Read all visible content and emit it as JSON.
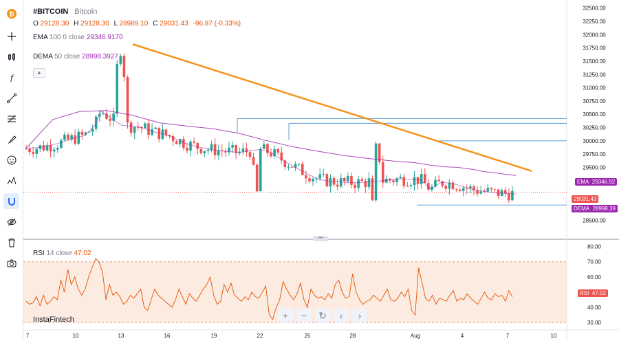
{
  "header": {
    "symbol": "#BITCOIN",
    "name": "Bitcoin",
    "ohlc": {
      "o_label": "O",
      "o": "29128.30",
      "h_label": "H",
      "h": "29128.30",
      "l_label": "L",
      "l": "28989.10",
      "c_label": "C",
      "c": "29031.43",
      "change": "-96.87 (-0.33%)"
    }
  },
  "indicators": {
    "ema": {
      "name": "EMA",
      "params": "100 0 close",
      "value": "29346.9170",
      "tag_name": "EMA",
      "tag_value": "29346.92"
    },
    "dema": {
      "name": "DEMA",
      "params": "50 close",
      "value": "28998.3927",
      "tag_name": "DEMA",
      "tag_value": "28998.39"
    },
    "rsi": {
      "name": "RSI",
      "params": "14 close",
      "value": "47.02",
      "tag_name": "RSI",
      "tag_value": "47.02"
    }
  },
  "price_tag": "29031.43",
  "watermark": "InstaFintech",
  "toolbar_icons": [
    "bitcoin-logo-icon",
    "crosshair-icon",
    "candles-icon",
    "fx-icon",
    "trend-line-icon",
    "fib-icon",
    "brush-icon",
    "emoji-icon",
    "pattern-icon",
    "magnet-icon",
    "eye-off-icon",
    "trash-icon",
    "camera-icon"
  ],
  "colors": {
    "up": "#26a69a",
    "down": "#ef5350",
    "trend": "#f7931a",
    "ema": "#9c27b0",
    "levels": "#5b9bd5",
    "rsi": "#e65100"
  },
  "chart_data": [
    {
      "type": "candlestick",
      "ylim": [
        28250,
        32600
      ],
      "price_ticks": [
        "32500.00",
        "32250.00",
        "32000.00",
        "31750.00",
        "31500.00",
        "31250.00",
        "31000.00",
        "30750.00",
        "30500.00",
        "30250.00",
        "30000.00",
        "29750.00",
        "29500.00",
        "29250.00",
        "28750.00",
        "28500.00"
      ],
      "x_ticks": [
        "7",
        "10",
        "13",
        "16",
        "19",
        "22",
        "25",
        "28",
        "Aug",
        "4",
        "7",
        "10"
      ],
      "series": [
        {
          "name": "EMA",
          "points": [
            [
              0,
              29860
            ],
            [
              5,
              30400
            ],
            [
              10,
              30550
            ],
            [
              15,
              30570
            ],
            [
              20,
              30480
            ],
            [
              25,
              30340
            ],
            [
              30,
              30280
            ],
            [
              35,
              30230
            ],
            [
              40,
              30140
            ],
            [
              45,
              30010
            ],
            [
              50,
              29890
            ],
            [
              55,
              29800
            ],
            [
              60,
              29720
            ],
            [
              65,
              29660
            ],
            [
              70,
              29610
            ],
            [
              73,
              29590
            ],
            [
              76,
              29540
            ],
            [
              79,
              29510
            ],
            [
              81,
              29500
            ],
            [
              84,
              29460
            ],
            [
              86,
              29420
            ],
            [
              88,
              29400
            ],
            [
              90,
              29370
            ],
            [
              92,
              29347
            ]
          ]
        },
        {
          "name": "DEMA",
          "points": [
            [
              0,
              29850
            ],
            [
              3,
              29880
            ],
            [
              6,
              29950
            ],
            [
              9,
              30050
            ],
            [
              11,
              30100
            ],
            [
              13,
              30300
            ],
            [
              14,
              30560
            ],
            [
              16,
              30420
            ],
            [
              18,
              30290
            ],
            [
              21,
              30270
            ],
            [
              24,
              30170
            ],
            [
              27,
              30090
            ],
            [
              30,
              29950
            ],
            [
              32,
              29890
            ],
            [
              35,
              29830
            ],
            [
              40,
              29780
            ],
            [
              44,
              29840
            ],
            [
              46,
              29780
            ],
            [
              48,
              29650
            ],
            [
              52,
              29420
            ],
            [
              55,
              29270
            ],
            [
              58,
              29230
            ],
            [
              62,
              29210
            ],
            [
              66,
              29240
            ],
            [
              70,
              29280
            ],
            [
              74,
              29270
            ],
            [
              76,
              29090
            ],
            [
              78,
              29220
            ],
            [
              80,
              29200
            ],
            [
              84,
              29080
            ],
            [
              86,
              29050
            ],
            [
              88,
              29020
            ],
            [
              90,
              29010
            ],
            [
              92,
              28998
            ]
          ]
        }
      ],
      "trend_line": [
        [
          20,
          31820
        ],
        [
          95,
          29430
        ]
      ],
      "level_lines": [
        30420,
        30330,
        30000,
        28790
      ]
    },
    {
      "type": "line",
      "title": "RSI",
      "ylim": [
        26,
        83
      ],
      "y_ticks": [
        "80.00",
        "70.00",
        "60.00",
        "50.00",
        "40.00",
        "30.00"
      ],
      "levels": [
        70,
        30
      ],
      "values": [
        44,
        42,
        43,
        47,
        41,
        48,
        42,
        44,
        47,
        45,
        58,
        50,
        65,
        55,
        60,
        52,
        48,
        52,
        60,
        66,
        72,
        70,
        63,
        45,
        55,
        48,
        50,
        47,
        42,
        44,
        48,
        46,
        49,
        52,
        40,
        38,
        45,
        52,
        48,
        46,
        44,
        42,
        40,
        45,
        52,
        47,
        42,
        49,
        46,
        44,
        48,
        52,
        55,
        60,
        48,
        42,
        44,
        55,
        50,
        56,
        48,
        46,
        44,
        47,
        45,
        50,
        47,
        46,
        50,
        54,
        35,
        32,
        40,
        45,
        57,
        52,
        48,
        45,
        49,
        56,
        45,
        40,
        52,
        48,
        46,
        47,
        45,
        49,
        46,
        55,
        58,
        50,
        46,
        47,
        62,
        50,
        45,
        42,
        44,
        45,
        48,
        46,
        44,
        48,
        52,
        45,
        44,
        46,
        50,
        47,
        52,
        38,
        35,
        66,
        56,
        46,
        44,
        48,
        42,
        46,
        45,
        44,
        48,
        51,
        44,
        46,
        45,
        49,
        46,
        44,
        42,
        46,
        50,
        46,
        45,
        49,
        47,
        48,
        44,
        51,
        47
      ]
    }
  ]
}
